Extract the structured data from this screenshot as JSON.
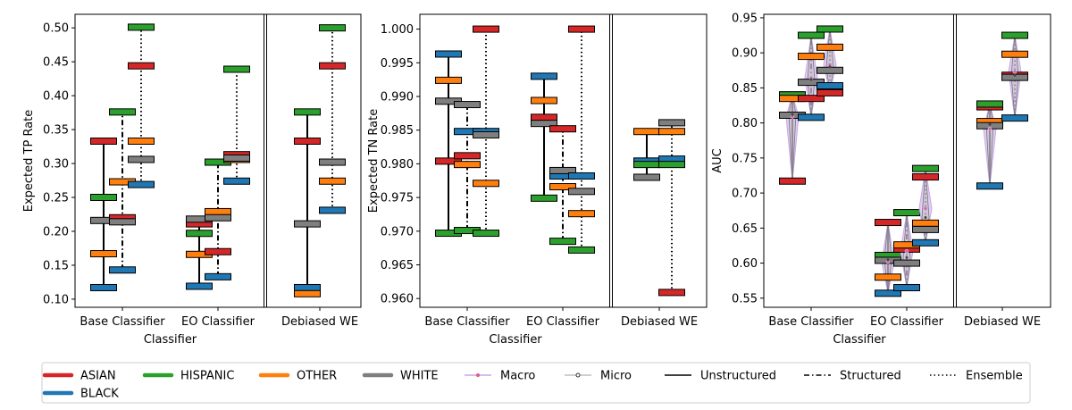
{
  "figure": {
    "legend": [
      {
        "label": "ASIAN",
        "kind": "race",
        "color": "#d62728"
      },
      {
        "label": "BLACK",
        "kind": "race",
        "color": "#1f77b4"
      },
      {
        "label": "HISPANIC",
        "kind": "race",
        "color": "#2ca02c"
      },
      {
        "label": "OTHER",
        "kind": "race",
        "color": "#ff7f0e"
      },
      {
        "label": "WHITE",
        "kind": "race",
        "color": "#7f7f7f"
      },
      {
        "label": "Macro",
        "kind": "macro",
        "color": "#c8a6e8"
      },
      {
        "label": "Micro",
        "kind": "micro",
        "color": "#bdbdbd"
      },
      {
        "label": "Unstructured",
        "kind": "line",
        "dash": "solid"
      },
      {
        "label": "Structured",
        "kind": "line",
        "dash": "dashdot"
      },
      {
        "label": "Ensemble",
        "kind": "line",
        "dash": "dotted"
      }
    ]
  },
  "chart_data": [
    {
      "type": "range",
      "xlabel": "Classifier",
      "ylabel": "Expected TP Rate",
      "ylim": [
        0.088,
        0.52
      ],
      "yticks": [
        0.1,
        0.15,
        0.2,
        0.25,
        0.3,
        0.35,
        0.4,
        0.45,
        0.5
      ],
      "ytick_labels": [
        "0.10",
        "0.15",
        "0.20",
        "0.25",
        "0.30",
        "0.35",
        "0.40",
        "0.45",
        "0.50"
      ],
      "categories": [
        "Base Classifier",
        "EO Classifier",
        "Debiased WE"
      ],
      "groups": [
        {
          "category": "Base Classifier",
          "variant": "Unstructured",
          "values": {
            "ASIAN": 0.333,
            "BLACK": 0.117,
            "HISPANIC": 0.25,
            "OTHER": 0.167,
            "WHITE": 0.216
          }
        },
        {
          "category": "Base Classifier",
          "variant": "Structured",
          "values": {
            "ASIAN": 0.22,
            "BLACK": 0.143,
            "HISPANIC": 0.376,
            "OTHER": 0.273,
            "WHITE": 0.214
          }
        },
        {
          "category": "Base Classifier",
          "variant": "Ensemble",
          "values": {
            "ASIAN": 0.444,
            "BLACK": 0.269,
            "HISPANIC": 0.501,
            "OTHER": 0.333,
            "WHITE": 0.306
          }
        },
        {
          "category": "EO Classifier",
          "variant": "Unstructured",
          "values": {
            "ASIAN": 0.211,
            "BLACK": 0.119,
            "HISPANIC": 0.197,
            "OTHER": 0.166,
            "WHITE": 0.218
          }
        },
        {
          "category": "EO Classifier",
          "variant": "Structured",
          "values": {
            "ASIAN": 0.17,
            "BLACK": 0.133,
            "HISPANIC": 0.302,
            "OTHER": 0.229,
            "WHITE": 0.22
          }
        },
        {
          "category": "EO Classifier",
          "variant": "Ensemble",
          "values": {
            "ASIAN": 0.313,
            "BLACK": 0.274,
            "HISPANIC": 0.439,
            "OTHER": 0.306,
            "WHITE": 0.308
          }
        },
        {
          "category": "Debiased WE",
          "variant": "Unstructured",
          "values": {
            "ASIAN": 0.333,
            "BLACK": 0.117,
            "HISPANIC": 0.376,
            "OTHER": 0.108,
            "WHITE": 0.211
          }
        },
        {
          "category": "Debiased WE",
          "variant": "Ensemble",
          "values": {
            "ASIAN": 0.444,
            "BLACK": 0.231,
            "HISPANIC": 0.5,
            "OTHER": 0.274,
            "WHITE": 0.302
          }
        }
      ]
    },
    {
      "type": "range",
      "xlabel": "Classifier",
      "ylabel": "Expected TN Rate",
      "ylim": [
        0.9587,
        1.0022
      ],
      "yticks": [
        0.96,
        0.965,
        0.97,
        0.975,
        0.98,
        0.985,
        0.99,
        0.995,
        1.0
      ],
      "ytick_labels": [
        "0.960",
        "0.965",
        "0.970",
        "0.975",
        "0.980",
        "0.985",
        "0.990",
        "0.995",
        "1.000"
      ],
      "categories": [
        "Base Classifier",
        "EO Classifier",
        "Debiased WE"
      ],
      "groups": [
        {
          "category": "Base Classifier",
          "variant": "Unstructured",
          "values": {
            "ASIAN": 0.9804,
            "BLACK": 0.9963,
            "HISPANIC": 0.9697,
            "OTHER": 0.9924,
            "WHITE": 0.9893
          }
        },
        {
          "category": "Base Classifier",
          "variant": "Structured",
          "values": {
            "ASIAN": 0.9812,
            "BLACK": 0.9848,
            "HISPANIC": 0.9701,
            "OTHER": 0.9799,
            "WHITE": 0.9888
          }
        },
        {
          "category": "Base Classifier",
          "variant": "Ensemble",
          "values": {
            "ASIAN": 1.0,
            "BLACK": 0.9848,
            "HISPANIC": 0.9697,
            "OTHER": 0.9771,
            "WHITE": 0.9843
          }
        },
        {
          "category": "EO Classifier",
          "variant": "Unstructured",
          "values": {
            "ASIAN": 0.9869,
            "BLACK": 0.993,
            "HISPANIC": 0.9749,
            "OTHER": 0.9894,
            "WHITE": 0.986
          }
        },
        {
          "category": "EO Classifier",
          "variant": "Structured",
          "values": {
            "ASIAN": 0.9852,
            "BLACK": 0.9782,
            "HISPANIC": 0.9685,
            "OTHER": 0.9766,
            "WHITE": 0.979
          }
        },
        {
          "category": "EO Classifier",
          "variant": "Ensemble",
          "values": {
            "ASIAN": 1.0,
            "BLACK": 0.9782,
            "HISPANIC": 0.9672,
            "OTHER": 0.9726,
            "WHITE": 0.9759
          }
        },
        {
          "category": "Debiased WE",
          "variant": "Unstructured",
          "values": {
            "ASIAN": 0.9804,
            "BLACK": 0.9804,
            "HISPANIC": 0.9799,
            "OTHER": 0.9848,
            "WHITE": 0.978
          }
        },
        {
          "category": "Debiased WE",
          "variant": "Ensemble",
          "values": {
            "ASIAN": 0.9609,
            "BLACK": 0.9807,
            "HISPANIC": 0.9799,
            "OTHER": 0.9848,
            "WHITE": 0.9861
          }
        }
      ]
    },
    {
      "type": "range",
      "xlabel": "Classifier",
      "ylabel": "AUC",
      "ylim": [
        0.537,
        0.955
      ],
      "yticks": [
        0.55,
        0.6,
        0.65,
        0.7,
        0.75,
        0.8,
        0.85,
        0.9,
        0.95
      ],
      "ytick_labels": [
        "0.55",
        "0.60",
        "0.65",
        "0.70",
        "0.75",
        "0.80",
        "0.85",
        "0.90",
        "0.95"
      ],
      "categories": [
        "Base Classifier",
        "EO Classifier",
        "Debiased WE"
      ],
      "groups": [
        {
          "category": "Base Classifier",
          "variant": "Unstructured",
          "values": {
            "ASIAN": 0.717,
            "BLACK": 0.84,
            "HISPANIC": 0.84,
            "OTHER": 0.835,
            "WHITE": 0.811
          },
          "macro": 0.809,
          "micro": 0.812
        },
        {
          "category": "Base Classifier",
          "variant": "Structured",
          "values": {
            "ASIAN": 0.835,
            "BLACK": 0.808,
            "HISPANIC": 0.925,
            "OTHER": 0.895,
            "WHITE": 0.858
          },
          "macro": 0.864,
          "micro": 0.862
        },
        {
          "category": "Base Classifier",
          "variant": "Ensemble",
          "values": {
            "ASIAN": 0.843,
            "BLACK": 0.853,
            "HISPANIC": 0.934,
            "OTHER": 0.908,
            "WHITE": 0.875
          },
          "macro": 0.883,
          "micro": 0.88
        },
        {
          "category": "EO Classifier",
          "variant": "Unstructured",
          "values": {
            "ASIAN": 0.658,
            "BLACK": 0.557,
            "HISPANIC": 0.611,
            "OTHER": 0.58,
            "WHITE": 0.604
          },
          "macro": 0.602,
          "micro": 0.605
        },
        {
          "category": "EO Classifier",
          "variant": "Structured",
          "values": {
            "ASIAN": 0.62,
            "BLACK": 0.565,
            "HISPANIC": 0.672,
            "OTHER": 0.626,
            "WHITE": 0.6
          },
          "macro": 0.617,
          "micro": 0.608
        },
        {
          "category": "EO Classifier",
          "variant": "Ensemble",
          "values": {
            "ASIAN": 0.723,
            "BLACK": 0.629,
            "HISPANIC": 0.735,
            "OTHER": 0.657,
            "WHITE": 0.648
          },
          "macro": 0.678,
          "micro": 0.665
        },
        {
          "category": "Debiased WE",
          "variant": "Unstructured",
          "values": {
            "ASIAN": 0.823,
            "BLACK": 0.71,
            "HISPANIC": 0.827,
            "OTHER": 0.802,
            "WHITE": 0.796
          },
          "macro": 0.792,
          "micro": 0.798
        },
        {
          "category": "Debiased WE",
          "variant": "Ensemble",
          "values": {
            "ASIAN": 0.868,
            "BLACK": 0.807,
            "HISPANIC": 0.925,
            "OTHER": 0.898,
            "WHITE": 0.865
          },
          "macro": 0.873,
          "micro": 0.868
        }
      ]
    }
  ]
}
